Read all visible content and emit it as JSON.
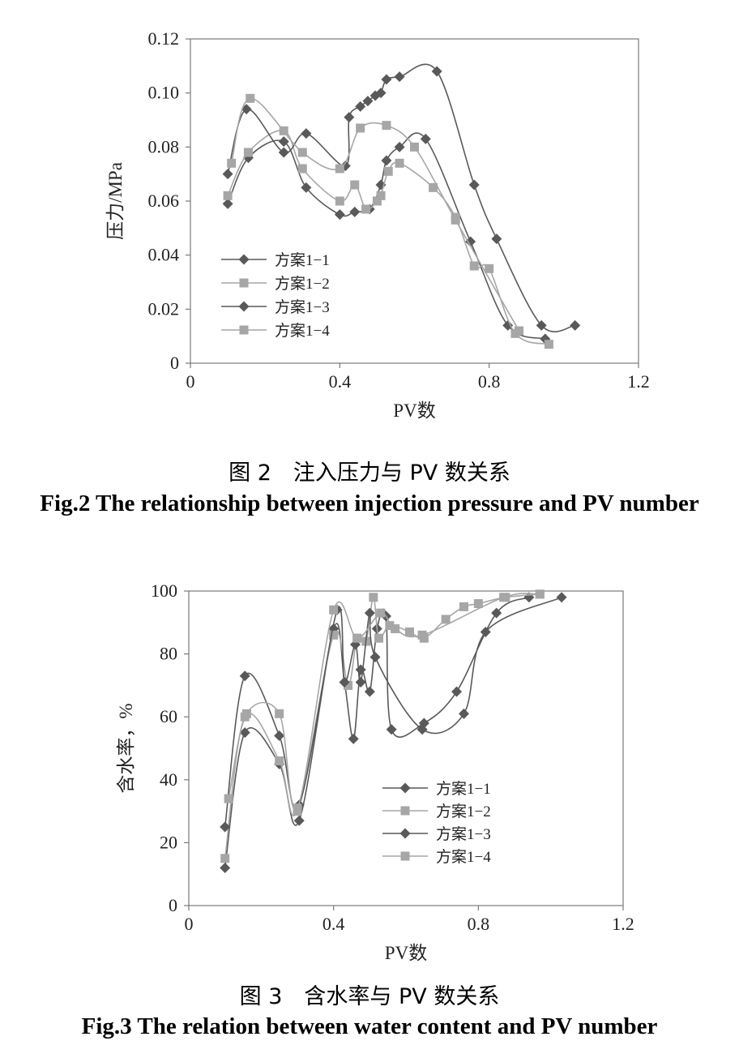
{
  "chart_data": [
    {
      "type": "line",
      "title": "",
      "xlabel": "PV数",
      "ylabel": "压力/MPa",
      "xlim": [
        0,
        1.2
      ],
      "ylim": [
        0,
        0.12
      ],
      "x_ticks": [
        "0",
        "0.4",
        "0.8",
        "1.2"
      ],
      "y_ticks": [
        "0",
        "0.02",
        "0.04",
        "0.06",
        "0.08",
        "0.10",
        "0.12"
      ],
      "grid": false,
      "legend_position": "left",
      "series": [
        {
          "name": "方案1−1",
          "color": "#595959",
          "marker": "diamond",
          "x": [
            0.1,
            0.155,
            0.25,
            0.31,
            0.4,
            0.44,
            0.48,
            0.51,
            0.525,
            0.56,
            0.63,
            0.75,
            0.85,
            0.95
          ],
          "y": [
            0.059,
            0.076,
            0.082,
            0.065,
            0.055,
            0.056,
            0.057,
            0.066,
            0.075,
            0.08,
            0.083,
            0.045,
            0.014,
            0.009
          ]
        },
        {
          "name": "方案1−2",
          "color": "#a6a6a6",
          "marker": "square",
          "x": [
            0.1,
            0.155,
            0.25,
            0.3,
            0.4,
            0.44,
            0.47,
            0.5,
            0.51,
            0.53,
            0.56,
            0.65,
            0.71,
            0.76,
            0.8,
            0.87,
            0.96
          ],
          "y": [
            0.062,
            0.078,
            0.086,
            0.072,
            0.06,
            0.066,
            0.057,
            0.06,
            0.062,
            0.071,
            0.074,
            0.065,
            0.054,
            0.036,
            0.035,
            0.011,
            0.007
          ]
        },
        {
          "name": "方案1−3",
          "color": "#595959",
          "marker": "diamond",
          "x": [
            0.1,
            0.15,
            0.25,
            0.31,
            0.415,
            0.425,
            0.455,
            0.475,
            0.495,
            0.51,
            0.525,
            0.56,
            0.66,
            0.76,
            0.82,
            0.94,
            1.03
          ],
          "y": [
            0.07,
            0.094,
            0.078,
            0.085,
            0.073,
            0.091,
            0.095,
            0.097,
            0.099,
            0.1,
            0.105,
            0.106,
            0.108,
            0.066,
            0.046,
            0.014,
            0.014
          ]
        },
        {
          "name": "方案1−4",
          "color": "#a6a6a6",
          "marker": "square",
          "x": [
            0.11,
            0.16,
            0.3,
            0.4,
            0.455,
            0.525,
            0.6,
            0.71,
            0.88
          ],
          "y": [
            0.074,
            0.098,
            0.078,
            0.072,
            0.087,
            0.088,
            0.08,
            0.053,
            0.012
          ]
        }
      ]
    },
    {
      "type": "line",
      "title": "",
      "xlabel": "PV数",
      "ylabel": "含水率，%",
      "xlim": [
        0,
        1.2
      ],
      "ylim": [
        0,
        100
      ],
      "x_ticks": [
        "0",
        "0.4",
        "0.8",
        "1.2"
      ],
      "y_ticks": [
        "0",
        "20",
        "40",
        "60",
        "80",
        "100"
      ],
      "grid": false,
      "legend_position": "right-middle",
      "series": [
        {
          "name": "方案1−1",
          "color": "#595959",
          "marker": "diamond",
          "x": [
            0.1,
            0.155,
            0.25,
            0.305,
            0.4,
            0.43,
            0.455,
            0.475,
            0.5,
            0.52,
            0.545,
            0.56,
            0.65,
            0.74,
            0.85,
            0.94
          ],
          "y": [
            12,
            55,
            45,
            27,
            88,
            71,
            53,
            75,
            68,
            88,
            92,
            56,
            58,
            68,
            93,
            98
          ]
        },
        {
          "name": "方案1−2",
          "color": "#a6a6a6",
          "marker": "square",
          "x": [
            0.1,
            0.155,
            0.25,
            0.3,
            0.4,
            0.44,
            0.465,
            0.49,
            0.51,
            0.525,
            0.555,
            0.61,
            0.65,
            0.71,
            0.76,
            0.8,
            0.875,
            0.97
          ],
          "y": [
            15,
            60,
            46,
            30,
            86,
            70,
            85,
            84,
            98,
            85,
            89,
            87,
            85,
            91,
            95,
            96,
            98,
            99
          ]
        },
        {
          "name": "方案1−3",
          "color": "#595959",
          "marker": "diamond",
          "x": [
            0.1,
            0.155,
            0.25,
            0.305,
            0.41,
            0.43,
            0.46,
            0.475,
            0.5,
            0.515,
            0.645,
            0.76,
            0.82,
            1.03
          ],
          "y": [
            25,
            73,
            54,
            32,
            94,
            71,
            83,
            71,
            93,
            79,
            56,
            61,
            87,
            98
          ]
        },
        {
          "name": "方案1−4",
          "color": "#a6a6a6",
          "marker": "square",
          "x": [
            0.11,
            0.16,
            0.25,
            0.3,
            0.4,
            0.465,
            0.53,
            0.57,
            0.645,
            0.87,
            0.97
          ],
          "y": [
            34,
            61,
            61,
            31,
            94,
            85,
            93,
            88,
            86,
            98,
            99
          ]
        }
      ]
    }
  ],
  "captions": {
    "fig2_cn": "图 2　注入压力与 PV 数关系",
    "fig2_en": "Fig.2 The relationship between injection pressure and PV number",
    "fig3_cn": "图 3　含水率与 PV 数关系",
    "fig3_en": "Fig.3 The relation between water content and PV number"
  }
}
